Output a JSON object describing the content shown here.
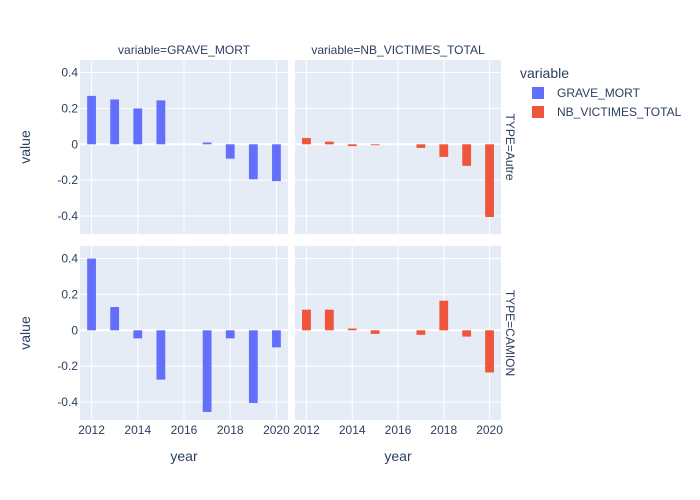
{
  "chart_data": {
    "type": "bar",
    "legend_title": "variable",
    "legend_placement": "right",
    "xlabel": "year",
    "ylabel": "value",
    "x_ticks": [
      "2012",
      "2014",
      "2016",
      "2018",
      "2020"
    ],
    "y_ticks": [
      "-0.4",
      "-0.2",
      "0",
      "0.2",
      "0.4"
    ],
    "ylim": [
      -0.5,
      0.47
    ],
    "xlim": [
      2011.5,
      2020.5
    ],
    "grid": true,
    "col_facets": [
      "variable=GRAVE_MORT",
      "variable=NB_VICTIMES_TOTAL"
    ],
    "row_facets": [
      "TYPE=Autre",
      "TYPE=CAMION"
    ],
    "x": [
      2012,
      2013,
      2014,
      2015,
      2016,
      2017,
      2018,
      2019,
      2020
    ],
    "series": [
      {
        "name": "GRAVE_MORT",
        "color": "#636efa",
        "facet_col": 0
      },
      {
        "name": "NB_VICTIMES_TOTAL",
        "color": "#ef553b",
        "facet_col": 1
      }
    ],
    "panels": [
      {
        "row": 0,
        "col": 0,
        "series": "GRAVE_MORT",
        "values": [
          0.27,
          0.25,
          0.2,
          0.245,
          0.0,
          0.01,
          -0.08,
          -0.195,
          -0.205
        ]
      },
      {
        "row": 0,
        "col": 1,
        "series": "NB_VICTIMES_TOTAL",
        "values": [
          0.035,
          0.015,
          -0.01,
          -0.005,
          0.0,
          -0.02,
          -0.07,
          -0.12,
          -0.405
        ]
      },
      {
        "row": 1,
        "col": 0,
        "series": "GRAVE_MORT",
        "values": [
          0.4,
          0.13,
          -0.045,
          -0.275,
          0.0,
          -0.455,
          -0.045,
          -0.405,
          -0.095
        ]
      },
      {
        "row": 1,
        "col": 1,
        "series": "NB_VICTIMES_TOTAL",
        "values": [
          0.115,
          0.115,
          0.01,
          -0.02,
          0.0,
          -0.025,
          0.165,
          -0.035,
          -0.235
        ]
      }
    ]
  }
}
